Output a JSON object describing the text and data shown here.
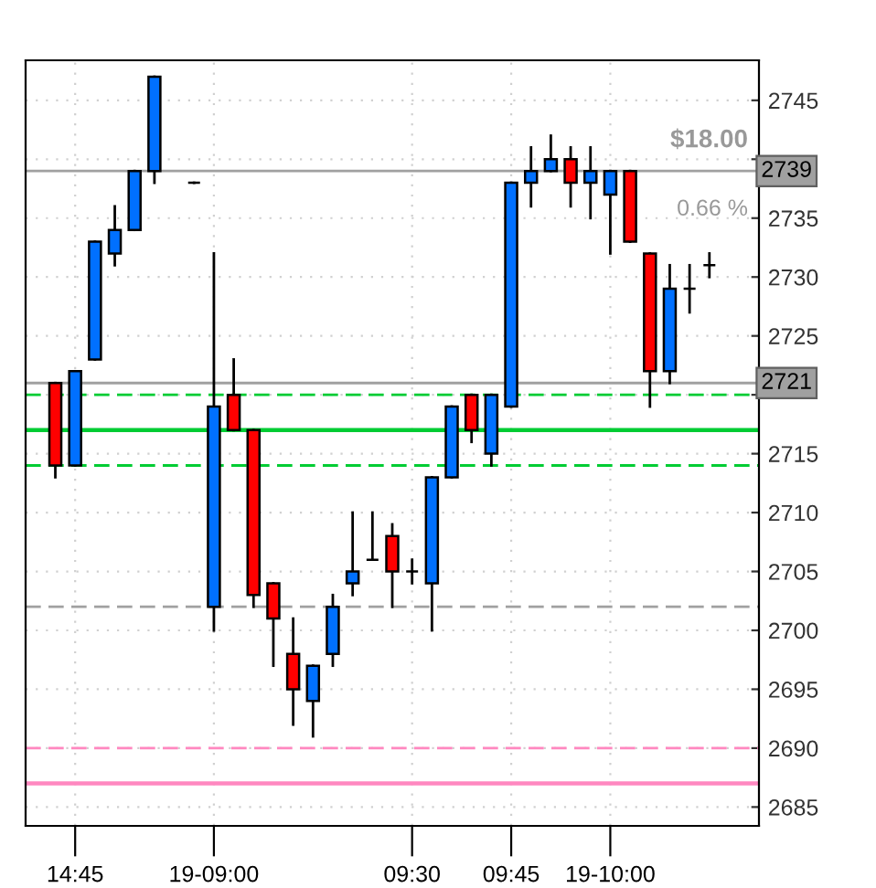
{
  "chart_data": {
    "type": "candlestick",
    "categories": [
      null,
      null,
      "14:45",
      null,
      null,
      null,
      null,
      null,
      null,
      "19-09:00",
      null,
      null,
      null,
      null,
      null,
      null,
      null,
      null,
      null,
      "09:30",
      null,
      null,
      null,
      null,
      "09:45",
      null,
      null,
      null,
      null,
      "19-10:00",
      null,
      null,
      null,
      null,
      null,
      null,
      null
    ],
    "ohlc": [
      null,
      [
        2721,
        2721,
        2713,
        2714
      ],
      [
        2714,
        2722,
        2714,
        2722
      ],
      [
        2723,
        2733,
        2723,
        2733
      ],
      [
        2732,
        2736,
        2731,
        2734
      ],
      [
        2734,
        2739,
        2734,
        2739
      ],
      [
        2739,
        2747,
        2738,
        2747
      ],
      null,
      [
        2738,
        2738,
        2738,
        2738
      ],
      [
        2702,
        2732,
        2700,
        2719
      ],
      [
        2720,
        2723,
        2717,
        2717
      ],
      [
        2717,
        2717,
        2702,
        2703
      ],
      [
        2704,
        2704,
        2697,
        2701
      ],
      [
        2698,
        2701,
        2692,
        2695
      ],
      [
        2694,
        2697,
        2691,
        2697
      ],
      [
        2698,
        2703,
        2697,
        2702
      ],
      [
        2704,
        2710,
        2703,
        2705
      ],
      [
        2706,
        2710,
        2706,
        2706
      ],
      [
        2708,
        2709,
        2702,
        2705
      ],
      [
        2705,
        2706,
        2704,
        2705
      ],
      [
        2704,
        2713,
        2700,
        2713
      ],
      [
        2713,
        2719,
        2713,
        2719
      ],
      [
        2720,
        2720,
        2716,
        2717
      ],
      [
        2715,
        2720,
        2714,
        2720
      ],
      [
        2719,
        2738,
        2719,
        2738
      ],
      [
        2738,
        2741,
        2736,
        2739
      ],
      [
        2739,
        2742,
        2739,
        2740
      ],
      [
        2740,
        2741,
        2736,
        2738
      ],
      [
        2738,
        2741,
        2735,
        2739
      ],
      [
        2737,
        2739,
        2732,
        2739
      ],
      [
        2739,
        2739,
        2733,
        2733
      ],
      [
        2732,
        2732,
        2719,
        2722
      ],
      [
        2722,
        2731,
        2721,
        2729
      ],
      [
        2729,
        2731,
        2727,
        2729
      ],
      [
        2731,
        2732,
        2730,
        2731
      ],
      null,
      null
    ],
    "colors": [
      null,
      "#ff0000",
      "#0070ff",
      "#0070ff",
      "#0070ff",
      "#0070ff",
      "#0070ff",
      null,
      "#000000",
      "#0070ff",
      "#ff0000",
      "#ff0000",
      "#ff0000",
      "#ff0000",
      "#0070ff",
      "#0070ff",
      "#0070ff",
      "#000000",
      "#ff0000",
      "#000000",
      "#0070ff",
      "#0070ff",
      "#ff0000",
      "#0070ff",
      "#0070ff",
      "#0070ff",
      "#0070ff",
      "#ff0000",
      "#0070ff",
      "#0070ff",
      "#ff0000",
      "#ff0000",
      "#0070ff",
      "#000000",
      "#000000",
      null,
      null
    ],
    "ylim": [
      2683.4,
      2748.4
    ],
    "yticks": [
      2685,
      2690,
      2695,
      2700,
      2705,
      2710,
      2715,
      {
        "value": 2720,
        "label": null
      },
      2725,
      2730,
      2735,
      {
        "value": 2740,
        "label": null
      },
      2745
    ],
    "grid": true,
    "ref_lines": [
      {
        "axis": "y",
        "value": 2717,
        "color": "#00cc33",
        "line_style": "solid"
      },
      {
        "axis": "y",
        "value": 2720,
        "color": "#00cc33",
        "line_style": "dashed"
      },
      {
        "axis": "y",
        "value": 2714,
        "color": "#00cc33",
        "line_style": "dashed"
      },
      {
        "axis": "y",
        "value": 2702,
        "color": "#a0a0a0",
        "line_style": "dashed"
      },
      {
        "axis": "y",
        "value": 2690,
        "color": "#ff88c0",
        "line_style": "dashed"
      },
      {
        "axis": "y",
        "value": 2687,
        "color": "#ff88c0",
        "line_style": "solid"
      },
      {
        "axis": "y",
        "value": 2739,
        "label": "2739",
        "color": "#a0a0a0",
        "line_style": "solid"
      },
      {
        "axis": "y",
        "value": 2721,
        "label": "2721",
        "color": "#a0a0a0",
        "line_style": "solid"
      }
    ],
    "annotations": [
      "$18.00",
      "0.66 %"
    ]
  }
}
